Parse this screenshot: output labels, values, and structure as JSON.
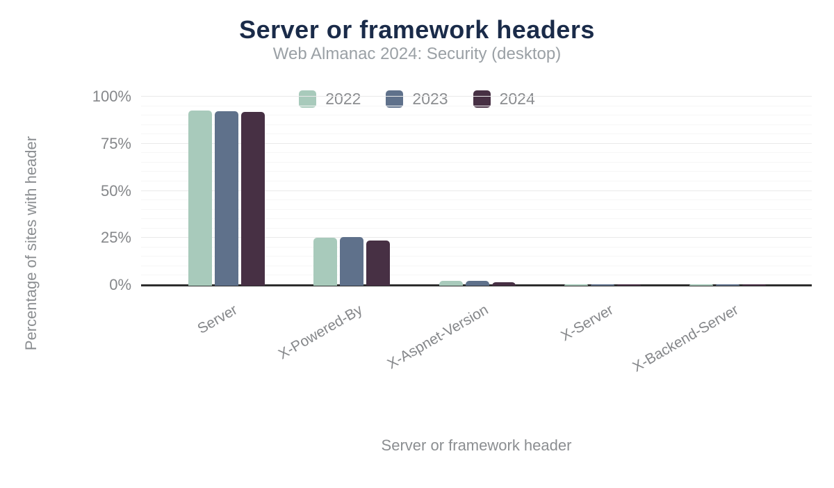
{
  "header": {
    "title": "Server or framework headers",
    "subtitle": "Web Almanac 2024: Security (desktop)"
  },
  "chart_data": {
    "type": "bar",
    "title": "Server or framework headers",
    "subtitle": "Web Almanac 2024: Security (desktop)",
    "categories": [
      "Server",
      "X-Powered-By",
      "X-Aspnet-Version",
      "X-Server",
      "X-Backend-Server"
    ],
    "series": [
      {
        "name": "2022",
        "color": "#a8cabb",
        "values": [
          92.8,
          25.1,
          2.2,
          0.5,
          0.4
        ]
      },
      {
        "name": "2023",
        "color": "#5f718b",
        "values": [
          92.2,
          25.3,
          2.3,
          0.5,
          0.4
        ]
      },
      {
        "name": "2024",
        "color": "#473044",
        "values": [
          91.9,
          23.8,
          1.4,
          0.4,
          0.3
        ]
      }
    ],
    "xlabel": "Server or framework header",
    "ylabel": "Percentage of sites with header",
    "ylim": [
      0,
      100
    ],
    "yticks": [
      0,
      25,
      50,
      75,
      100
    ],
    "ytick_suffix": "%",
    "minor_grid_step": 5,
    "grid": true,
    "legend_position": "top"
  },
  "colors": {
    "title": "#1a2b49",
    "subtitle": "#9aa0a5",
    "axis_labels": "#85878a",
    "axis_titles": "#8b8e91",
    "axis_line": "#2d2d2d",
    "grid_major": "#e9e9e9",
    "grid_minor": "#f6f6f6",
    "background": "#ffffff"
  }
}
